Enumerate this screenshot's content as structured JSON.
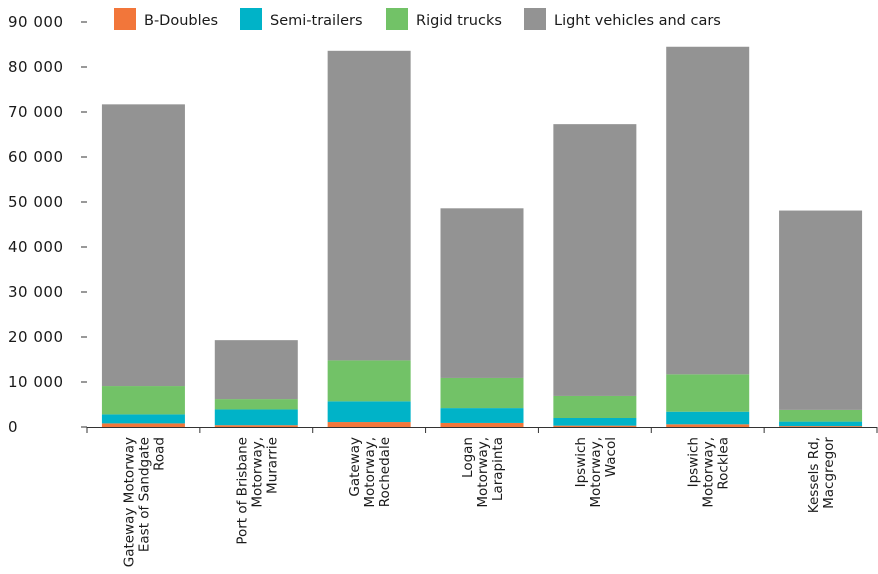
{
  "chart_data": {
    "type": "bar",
    "stacked": true,
    "title": "",
    "xlabel": "",
    "ylabel": "",
    "ylim": [
      0,
      90000
    ],
    "yticks": [
      0,
      10000,
      20000,
      30000,
      40000,
      50000,
      60000,
      70000,
      80000,
      90000
    ],
    "ytick_labels": [
      "0",
      "10 000",
      "20 000",
      "30 000",
      "40 000",
      "50 000",
      "60 000",
      "70 000",
      "80 000",
      "90 000"
    ],
    "grid": false,
    "legend_position": "top",
    "categories": [
      [
        "Gateway Motorway",
        "East of Sandgate",
        "Road"
      ],
      [
        "Port of Brisbane",
        "Motorway,",
        "Murarrie"
      ],
      [
        "Gateway",
        "Motorway,",
        "Rochedale"
      ],
      [
        "Logan",
        "Motorway,",
        "Larapinta"
      ],
      [
        "Ipswich",
        "Motorway,",
        "Wacol"
      ],
      [
        "Ipswich",
        "Motorway,",
        "Rocklea"
      ],
      [
        "Kessels Rd,",
        "Macgregor"
      ]
    ],
    "series": [
      {
        "name": "B-Doubles",
        "color": "#f2763a",
        "values": [
          800,
          400,
          1100,
          900,
          300,
          600,
          200
        ]
      },
      {
        "name": "Semi-trailers",
        "color": "#00b3c8",
        "values": [
          2000,
          3500,
          4600,
          3300,
          1700,
          2800,
          1000
        ]
      },
      {
        "name": "Rigid trucks",
        "color": "#72c267",
        "values": [
          6300,
          2300,
          9100,
          6700,
          4900,
          8300,
          2600
        ]
      },
      {
        "name": "Light vehicles and cars",
        "color": "#939393",
        "values": [
          62600,
          13100,
          68800,
          37700,
          60400,
          72800,
          44300
        ]
      }
    ]
  }
}
